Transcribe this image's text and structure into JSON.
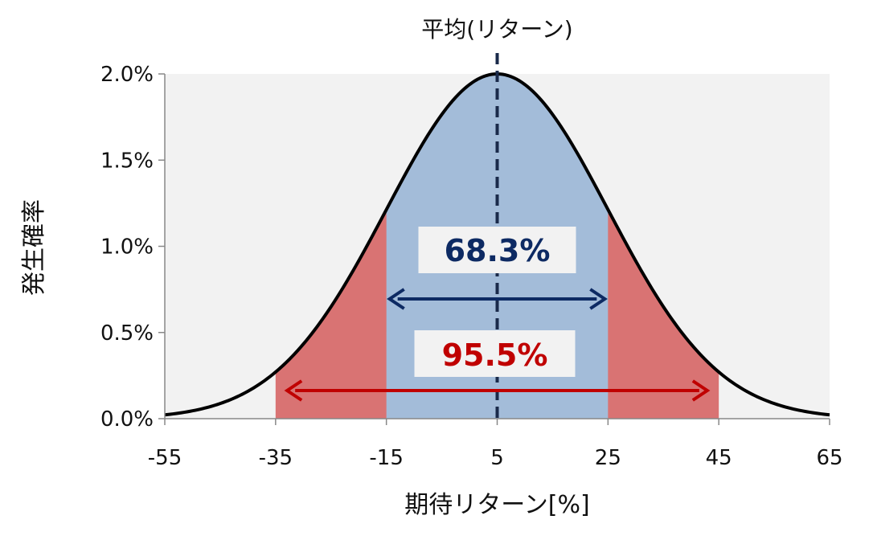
{
  "chart_data": {
    "type": "area",
    "title": "平均(リターン)",
    "xlabel": "期待リターン[%]",
    "ylabel": "発生確率",
    "xlim": [
      -55,
      65
    ],
    "ylim": [
      0,
      2.0
    ],
    "x_ticks": [
      "-55",
      "-35",
      "-15",
      "5",
      "25",
      "45",
      "65"
    ],
    "y_ticks": [
      "0.0%",
      "0.5%",
      "1.0%",
      "1.5%",
      "2.0%"
    ],
    "distribution": {
      "mean": 5,
      "std_dev": 20,
      "peak_percent": 2.0
    },
    "grid": false,
    "bands": [
      {
        "label": "68.3%",
        "from": -15,
        "to": 25,
        "color": "#a3bcd9",
        "label_color": "#0d2a63"
      },
      {
        "label": "95.5%",
        "from": -35,
        "to": 45,
        "color": "#d97373",
        "label_color": "#c00000"
      }
    ],
    "colors": {
      "plot_background": "#f2f2f2",
      "curve": "#000000",
      "mean_line": "#1a2a4a",
      "arrow_inner": "#0d2a63",
      "arrow_outer": "#c00000"
    }
  }
}
